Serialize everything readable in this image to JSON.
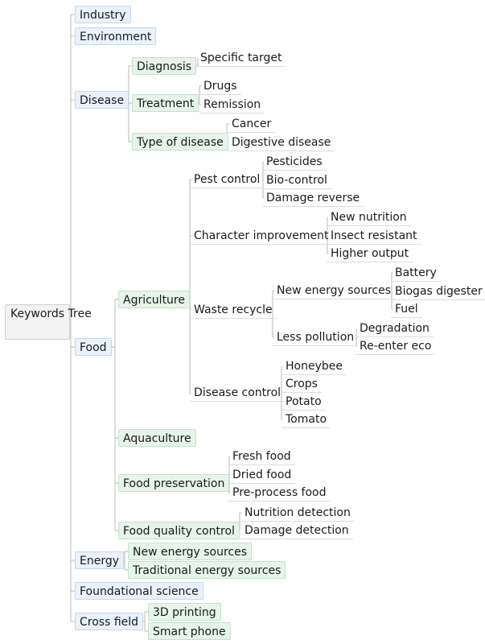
{
  "root": "Keywords Tree",
  "l1": {
    "industry": "Industry",
    "environment": "Environment",
    "disease": "Disease",
    "food": "Food",
    "energy": "Energy",
    "foundational": "Foundational science",
    "cross": "Cross field"
  },
  "disease": {
    "diagnosis": "Diagnosis",
    "diagnosis_children": [
      "Specific target"
    ],
    "treatment": "Treatment",
    "treatment_children": [
      "Drugs",
      "Remission"
    ],
    "type": "Type of disease",
    "type_children": [
      "Cancer",
      "Digestive disease"
    ]
  },
  "food": {
    "agriculture": "Agriculture",
    "pest": "Pest control",
    "pest_children": [
      "Pesticides",
      "Bio-control",
      "Damage reverse"
    ],
    "character": "Character improvement",
    "character_children": [
      "New nutrition",
      "Insect resistant",
      "Higher output"
    ],
    "waste": "Waste recycle",
    "new_energy": "New energy sources",
    "new_energy_children": [
      "Battery",
      "Biogas digester",
      "Fuel"
    ],
    "less_pollution": "Less pollution",
    "less_pollution_children": [
      "Degradation",
      "Re-enter eco"
    ],
    "disease_control": "Disease control",
    "disease_control_children": [
      "Honeybee",
      "Crops",
      "Potato",
      "Tomato"
    ],
    "aquaculture": "Aquaculture",
    "preservation": "Food preservation",
    "preservation_children": [
      "Fresh food",
      "Dried food",
      "Pre-process food"
    ],
    "quality": "Food quality control",
    "quality_children": [
      "Nutrition detection",
      "Damage detection"
    ]
  },
  "energy": {
    "children": [
      "New energy sources",
      "Traditional energy sources"
    ]
  },
  "cross": {
    "children": [
      "3D printing",
      "Smart phone"
    ]
  },
  "colors": {
    "line": "#b9b9b9",
    "root_fill": "#f3f3f3",
    "level1_fill": "#e9f1fb",
    "level2_fill": "#e6f4ea"
  }
}
